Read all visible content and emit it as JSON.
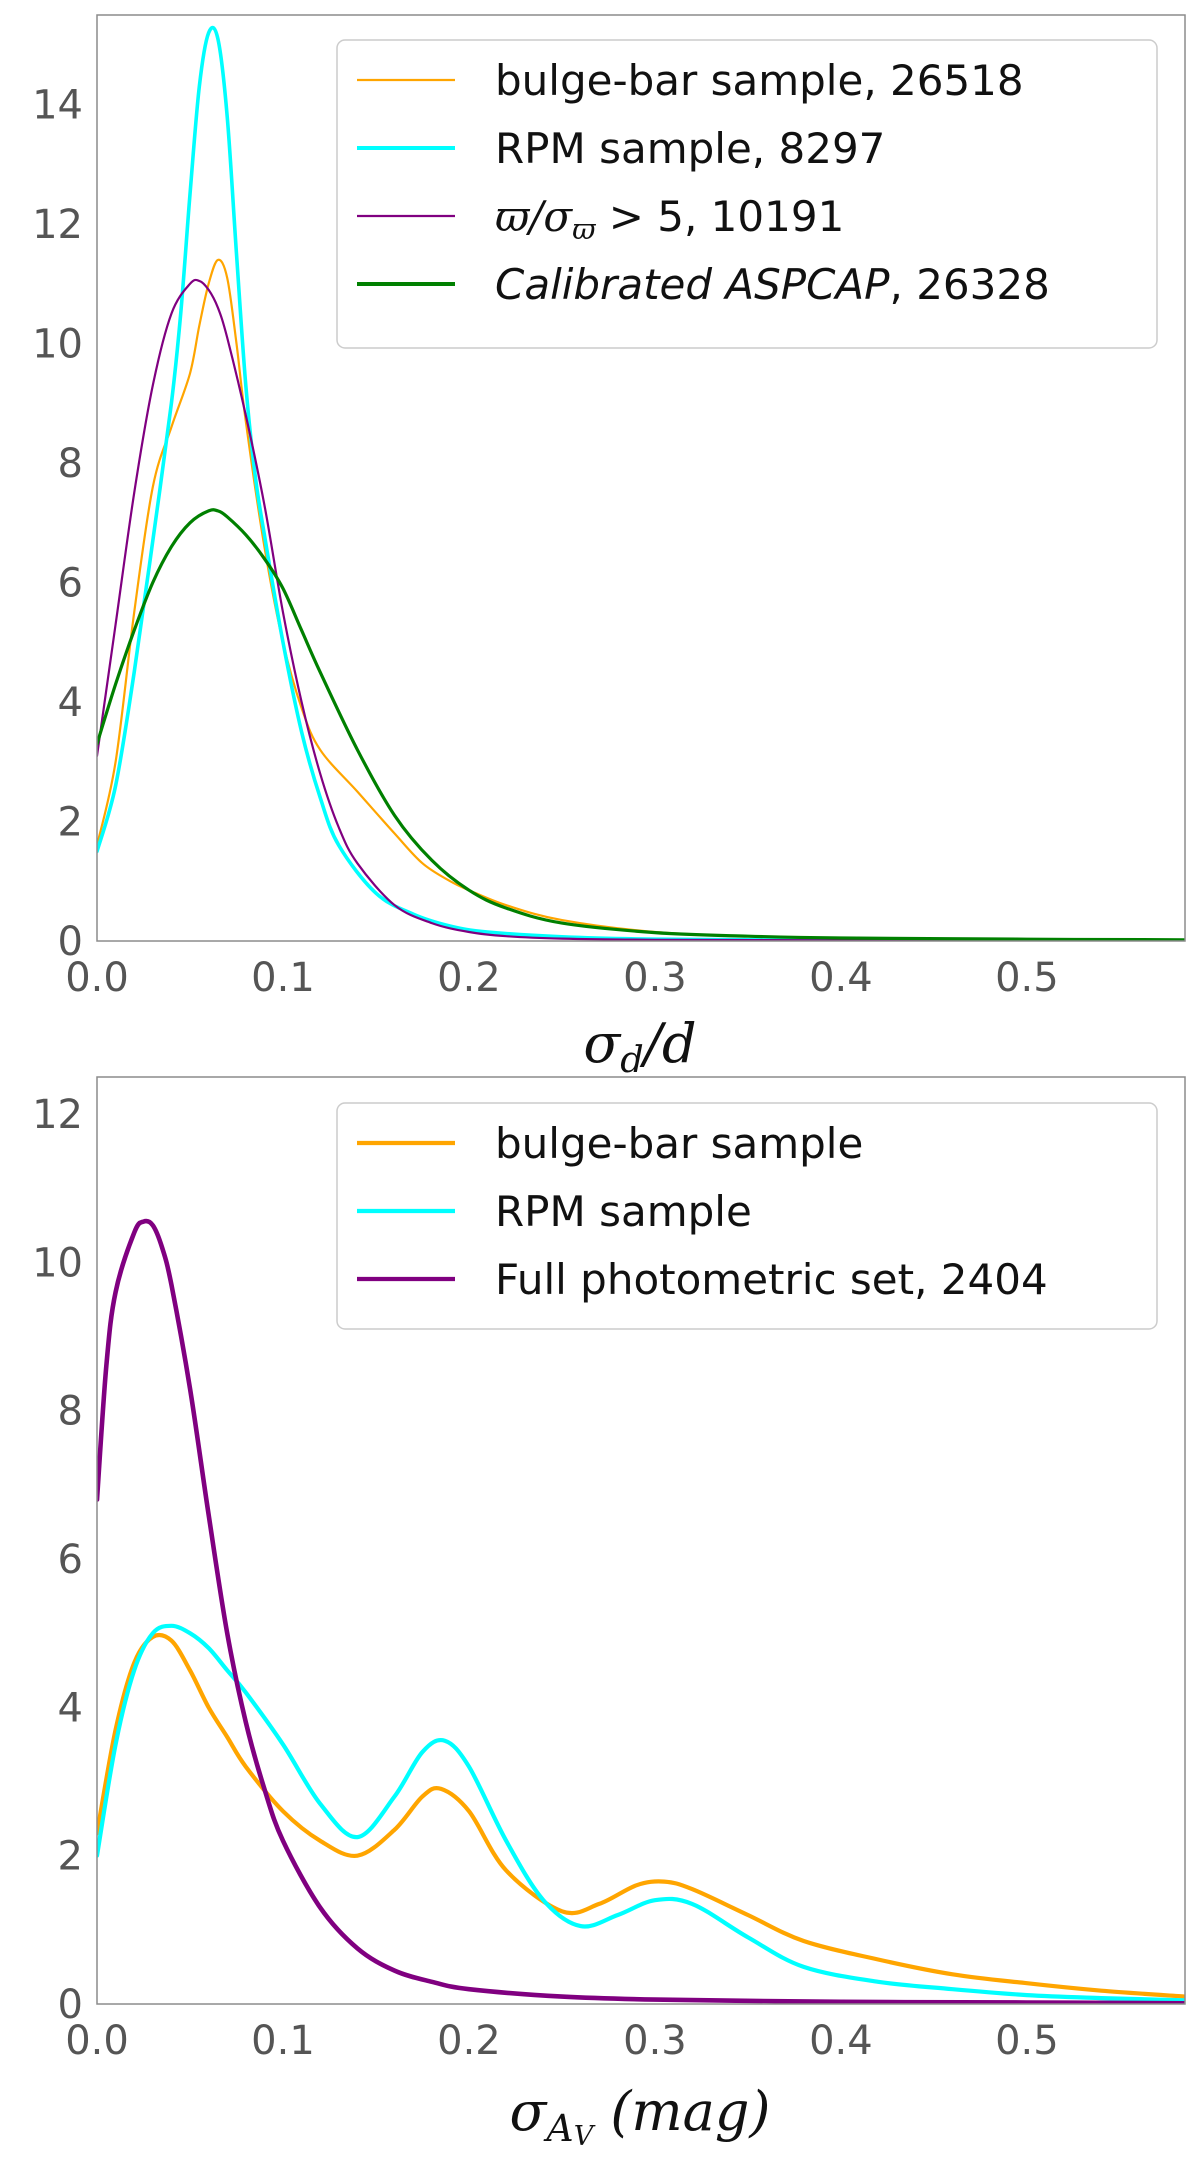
{
  "chart_data": [
    {
      "type": "line",
      "xlabel": "σ_d/d",
      "xlim": [
        0.0,
        0.585
      ],
      "ylim": [
        0,
        15.5
      ],
      "xticks": [
        "0.0",
        "0.1",
        "0.2",
        "0.3",
        "0.4",
        "0.5"
      ],
      "xtick_values": [
        0.0,
        0.1,
        0.2,
        0.3,
        0.4,
        0.5
      ],
      "yticks": [
        "0",
        "2",
        "4",
        "6",
        "8",
        "10",
        "12",
        "14"
      ],
      "ytick_values": [
        0,
        2,
        4,
        6,
        8,
        10,
        12,
        14
      ],
      "grid": false,
      "legend_position": "top-right",
      "series": [
        {
          "name": "bulge-bar sample, 26518",
          "color": "#FFA500",
          "x": [
            0.0,
            0.01,
            0.02,
            0.03,
            0.04,
            0.05,
            0.055,
            0.06,
            0.065,
            0.07,
            0.075,
            0.08,
            0.09,
            0.1,
            0.11,
            0.12,
            0.14,
            0.16,
            0.175,
            0.19,
            0.2,
            0.22,
            0.25,
            0.3,
            0.35,
            0.4,
            0.5,
            0.585
          ],
          "y": [
            1.6,
            3.0,
            5.5,
            7.6,
            8.6,
            9.5,
            10.3,
            11.0,
            11.4,
            11.1,
            10.0,
            8.7,
            6.6,
            5.0,
            3.9,
            3.2,
            2.5,
            1.8,
            1.3,
            1.0,
            0.85,
            0.6,
            0.35,
            0.15,
            0.08,
            0.05,
            0.03,
            0.02
          ]
        },
        {
          "name": "RPM sample, 8297",
          "color": "#00FFFF",
          "x": [
            0.0,
            0.01,
            0.02,
            0.03,
            0.04,
            0.045,
            0.05,
            0.055,
            0.06,
            0.065,
            0.07,
            0.075,
            0.08,
            0.085,
            0.09,
            0.1,
            0.11,
            0.12,
            0.13,
            0.15,
            0.17,
            0.19,
            0.21,
            0.25,
            0.3,
            0.4,
            0.585
          ],
          "y": [
            1.5,
            2.6,
            4.5,
            6.7,
            9.0,
            10.5,
            12.5,
            14.3,
            15.2,
            15.1,
            13.8,
            11.5,
            9.3,
            7.8,
            6.8,
            5.0,
            3.5,
            2.4,
            1.6,
            0.8,
            0.45,
            0.25,
            0.15,
            0.07,
            0.03,
            0.01,
            0.0
          ]
        },
        {
          "name": "ϖ/σ_ϖ > 5, 10191",
          "color": "#800080",
          "x": [
            0.0,
            0.01,
            0.02,
            0.03,
            0.04,
            0.05,
            0.055,
            0.06,
            0.065,
            0.07,
            0.08,
            0.09,
            0.1,
            0.11,
            0.12,
            0.13,
            0.14,
            0.16,
            0.18,
            0.2,
            0.22,
            0.25,
            0.3,
            0.4,
            0.585
          ],
          "y": [
            3.1,
            5.3,
            7.5,
            9.3,
            10.5,
            11.0,
            11.05,
            10.9,
            10.6,
            10.1,
            8.8,
            7.3,
            5.5,
            4.0,
            2.8,
            1.9,
            1.3,
            0.6,
            0.3,
            0.15,
            0.08,
            0.04,
            0.02,
            0.01,
            0.0
          ]
        },
        {
          "name": "Calibrated ASPCAP, 26328",
          "color": "#008000",
          "x": [
            0.0,
            0.01,
            0.02,
            0.03,
            0.04,
            0.05,
            0.06,
            0.065,
            0.07,
            0.08,
            0.09,
            0.1,
            0.11,
            0.12,
            0.14,
            0.16,
            0.18,
            0.2,
            0.22,
            0.25,
            0.3,
            0.35,
            0.4,
            0.5,
            0.585
          ],
          "y": [
            3.3,
            4.3,
            5.2,
            6.0,
            6.6,
            7.0,
            7.2,
            7.2,
            7.1,
            6.8,
            6.4,
            5.9,
            5.2,
            4.5,
            3.2,
            2.1,
            1.35,
            0.85,
            0.55,
            0.3,
            0.14,
            0.08,
            0.05,
            0.03,
            0.02
          ]
        }
      ]
    },
    {
      "type": "line",
      "xlabel": "σ_{A_V} (mag)",
      "xlim": [
        0.0,
        0.585
      ],
      "ylim": [
        0,
        12.5
      ],
      "xticks": [
        "0.0",
        "0.1",
        "0.2",
        "0.3",
        "0.4",
        "0.5"
      ],
      "xtick_values": [
        0.0,
        0.1,
        0.2,
        0.3,
        0.4,
        0.5
      ],
      "yticks": [
        "0",
        "2",
        "4",
        "6",
        "8",
        "10",
        "12"
      ],
      "ytick_values": [
        0,
        2,
        4,
        6,
        8,
        10,
        12
      ],
      "grid": false,
      "legend_position": "top-right",
      "series": [
        {
          "name": "bulge-bar sample",
          "color": "#FFA500",
          "x": [
            0.0,
            0.01,
            0.02,
            0.03,
            0.04,
            0.05,
            0.06,
            0.07,
            0.08,
            0.1,
            0.12,
            0.14,
            0.16,
            0.175,
            0.185,
            0.2,
            0.22,
            0.25,
            0.27,
            0.29,
            0.305,
            0.32,
            0.35,
            0.38,
            0.42,
            0.46,
            0.5,
            0.54,
            0.585
          ],
          "y": [
            2.3,
            3.7,
            4.6,
            4.95,
            4.9,
            4.5,
            4.0,
            3.6,
            3.2,
            2.6,
            2.2,
            2.0,
            2.35,
            2.8,
            2.9,
            2.6,
            1.8,
            1.25,
            1.35,
            1.6,
            1.65,
            1.55,
            1.2,
            0.85,
            0.6,
            0.4,
            0.28,
            0.18,
            0.1
          ]
        },
        {
          "name": "RPM sample",
          "color": "#00FFFF",
          "x": [
            0.0,
            0.01,
            0.02,
            0.03,
            0.04,
            0.05,
            0.06,
            0.07,
            0.08,
            0.1,
            0.12,
            0.14,
            0.16,
            0.175,
            0.187,
            0.2,
            0.22,
            0.24,
            0.26,
            0.28,
            0.3,
            0.32,
            0.35,
            0.38,
            0.42,
            0.46,
            0.5,
            0.54,
            0.585
          ],
          "y": [
            2.0,
            3.5,
            4.5,
            5.0,
            5.1,
            5.0,
            4.8,
            4.5,
            4.2,
            3.5,
            2.7,
            2.25,
            2.8,
            3.4,
            3.55,
            3.2,
            2.2,
            1.4,
            1.05,
            1.2,
            1.4,
            1.35,
            0.9,
            0.5,
            0.3,
            0.2,
            0.12,
            0.08,
            0.05
          ]
        },
        {
          "name": "Full photometric set, 2404",
          "color": "#800080",
          "x": [
            0.0,
            0.005,
            0.01,
            0.02,
            0.025,
            0.03,
            0.035,
            0.04,
            0.05,
            0.06,
            0.07,
            0.08,
            0.09,
            0.1,
            0.12,
            0.14,
            0.16,
            0.18,
            0.2,
            0.25,
            0.3,
            0.4,
            0.5,
            0.585
          ],
          "y": [
            6.8,
            8.6,
            9.6,
            10.4,
            10.55,
            10.5,
            10.2,
            9.7,
            8.3,
            6.6,
            5.0,
            3.8,
            2.9,
            2.2,
            1.3,
            0.75,
            0.45,
            0.3,
            0.2,
            0.1,
            0.06,
            0.03,
            0.02,
            0.01
          ]
        }
      ]
    }
  ]
}
